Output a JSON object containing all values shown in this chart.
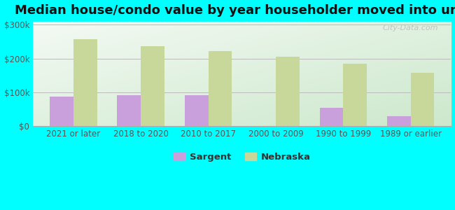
{
  "title": "Median house/condo value by year householder moved into unit",
  "categories": [
    "2021 or later",
    "2018 to 2020",
    "2010 to 2017",
    "2000 to 2009",
    "1990 to 1999",
    "1989 or earlier"
  ],
  "sargent_values": [
    87000,
    92000,
    92000,
    0,
    55000,
    30000
  ],
  "nebraska_values": [
    258000,
    237000,
    222000,
    205000,
    185000,
    158000
  ],
  "sargent_color": "#c9a0dc",
  "nebraska_color": "#c8d89a",
  "figure_bg_color": "#00ffff",
  "yticks": [
    0,
    100000,
    200000,
    300000
  ],
  "ytick_labels": [
    "$0",
    "$100k",
    "$200k",
    "$300k"
  ],
  "ylim": [
    0,
    310000
  ],
  "bar_width": 0.35,
  "legend_labels": [
    "Sargent",
    "Nebraska"
  ],
  "watermark": "City-Data.com",
  "title_fontsize": 13,
  "tick_fontsize": 8.5,
  "legend_fontsize": 9.5
}
